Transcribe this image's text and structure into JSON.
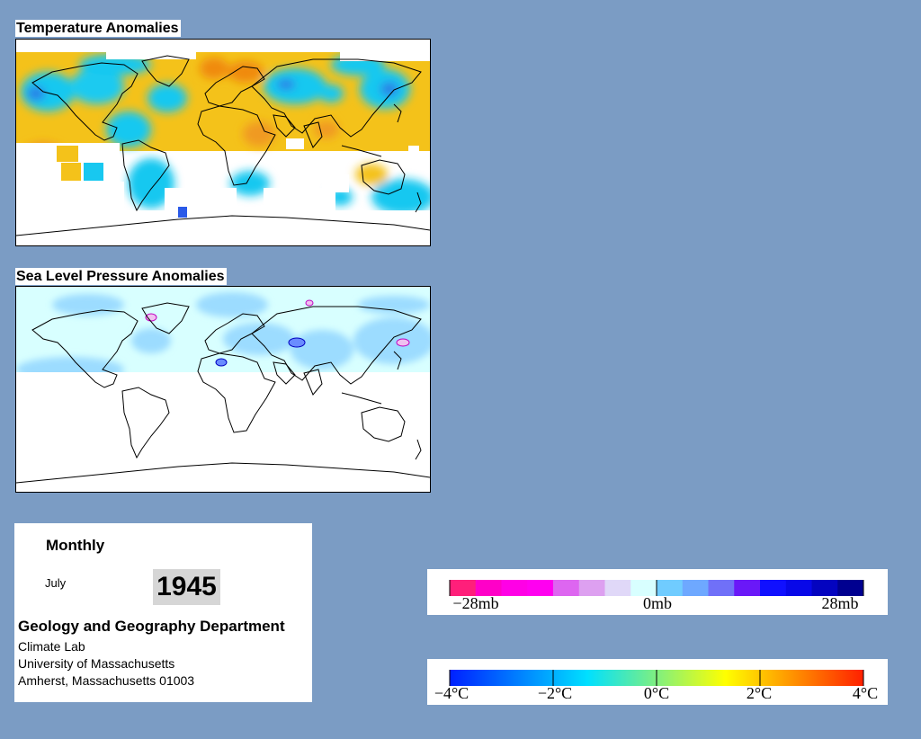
{
  "temperature_map": {
    "title": "Temperature Anomalies"
  },
  "pressure_map": {
    "title": "Sea Level Pressure Anomalies"
  },
  "info": {
    "frequency": "Monthly",
    "month": "July",
    "year": "1945",
    "department": "Geology and Geography Department",
    "lab": "Climate Lab",
    "university": "University of Massachusetts",
    "address": "Amherst, Massachusetts 01003"
  },
  "pressure_legend": {
    "colors": [
      "#ff1f7a",
      "#ff00c8",
      "#ff00e6",
      "#ff00f0",
      "#dd66f0",
      "#dda0f0",
      "#e0d8f8",
      "#d8ffff",
      "#70ccff",
      "#6ea8ff",
      "#7070f8",
      "#6a18f8",
      "#1010ff",
      "#0808e8",
      "#0404c0",
      "#000090"
    ],
    "labels": [
      "−28mb",
      "0mb",
      "28mb"
    ]
  },
  "temperature_legend": {
    "colors": [
      "#0020ff",
      "#00e0ff",
      "#ffff00",
      "#ff2000"
    ],
    "labels": [
      "−4°C",
      "−2°C",
      "0°C",
      "2°C",
      "4°C"
    ]
  }
}
